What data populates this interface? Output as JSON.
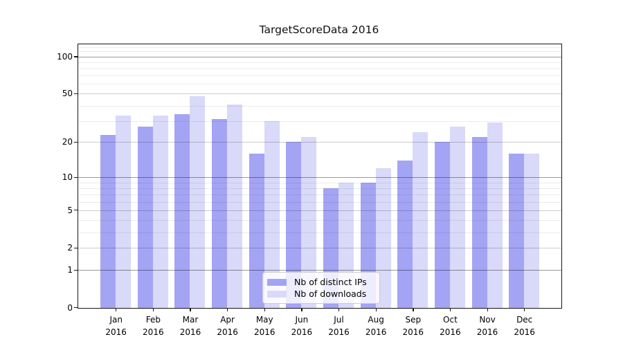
{
  "chart_data": {
    "type": "bar",
    "title": "TargetScoreData 2016",
    "categories": [
      "Jan",
      "Feb",
      "Mar",
      "Apr",
      "May",
      "Jun",
      "Jul",
      "Aug",
      "Sep",
      "Oct",
      "Nov",
      "Dec"
    ],
    "category_year": "2016",
    "series": [
      {
        "name": "Nb of distinct IPs",
        "color": "#a4a4f4",
        "values": [
          23,
          27,
          34,
          31,
          16,
          20,
          8,
          9,
          14,
          20,
          22,
          16
        ]
      },
      {
        "name": "Nb of downloads",
        "color": "#d9d9f9",
        "values": [
          33,
          33,
          48,
          41,
          30,
          22,
          9,
          12,
          24,
          27,
          29,
          16
        ]
      }
    ],
    "y_axis": {
      "scale": "log1p",
      "ticks": [
        0,
        1,
        2,
        5,
        10,
        20,
        50,
        100
      ],
      "tick_labels": [
        "0",
        "1",
        "2",
        "5",
        "10",
        "20",
        "50",
        "100"
      ],
      "strong_gridlines": [
        1,
        10,
        100
      ],
      "minor_gridlines": [
        3,
        4,
        6,
        7,
        8,
        9,
        30,
        40,
        60,
        70,
        80,
        90,
        110,
        120
      ],
      "ylim": [
        0,
        126
      ]
    },
    "grid": true,
    "legend_position": "lower center",
    "colors": {
      "axis": "#161616",
      "text": "#000000",
      "background": "#ffffff"
    }
  }
}
